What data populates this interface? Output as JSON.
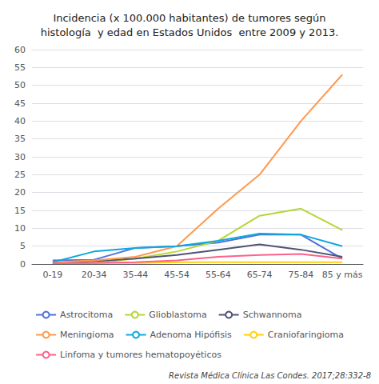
{
  "chart_data": {
    "type": "line",
    "title": "Incidencia (x 100.000 habitantes) de tumores según\nhistología  y edad en Estados Unidos  entre 2009 y 2013.",
    "categories": [
      "0-19",
      "20-34",
      "35-44",
      "45-54",
      "55-64",
      "65-74",
      "75-84",
      "85 y más"
    ],
    "series": [
      {
        "name": "Astrocitoma",
        "values": [
          1.0,
          1.2,
          4.5,
          5.0,
          6.0,
          8.2,
          8.2,
          1.5
        ]
      },
      {
        "name": "Glioblastoma",
        "values": [
          0.2,
          0.3,
          1.5,
          3.5,
          6.5,
          13.5,
          15.5,
          9.5
        ]
      },
      {
        "name": "Schwannoma",
        "values": [
          0.3,
          0.8,
          1.5,
          2.5,
          4.0,
          5.5,
          4.0,
          2.0
        ]
      },
      {
        "name": "Meningioma",
        "values": [
          0.5,
          1.0,
          2.0,
          5.0,
          15.5,
          25.0,
          40.0,
          53.0
        ]
      },
      {
        "name": "Adenoma Hipófisis",
        "values": [
          0.5,
          3.5,
          4.5,
          5.0,
          6.5,
          8.5,
          8.2,
          5.0
        ]
      },
      {
        "name": "Craniofaringioma",
        "values": [
          0.3,
          0.3,
          0.3,
          0.5,
          0.5,
          0.5,
          0.5,
          0.5
        ]
      },
      {
        "name": "Linfoma y tumores hematopoyéticos",
        "values": [
          0.2,
          0.3,
          0.5,
          1.0,
          2.0,
          2.5,
          2.8,
          1.5
        ]
      }
    ],
    "ylim": [
      0,
      60
    ],
    "yticks": [
      0,
      5,
      10,
      15,
      20,
      25,
      30,
      35,
      40,
      45,
      50,
      55,
      60
    ],
    "grid": true,
    "legend": "bottom",
    "annotations": [
      "Revista Médica Clínica Las Condes. 2017;28:332-8"
    ]
  }
}
